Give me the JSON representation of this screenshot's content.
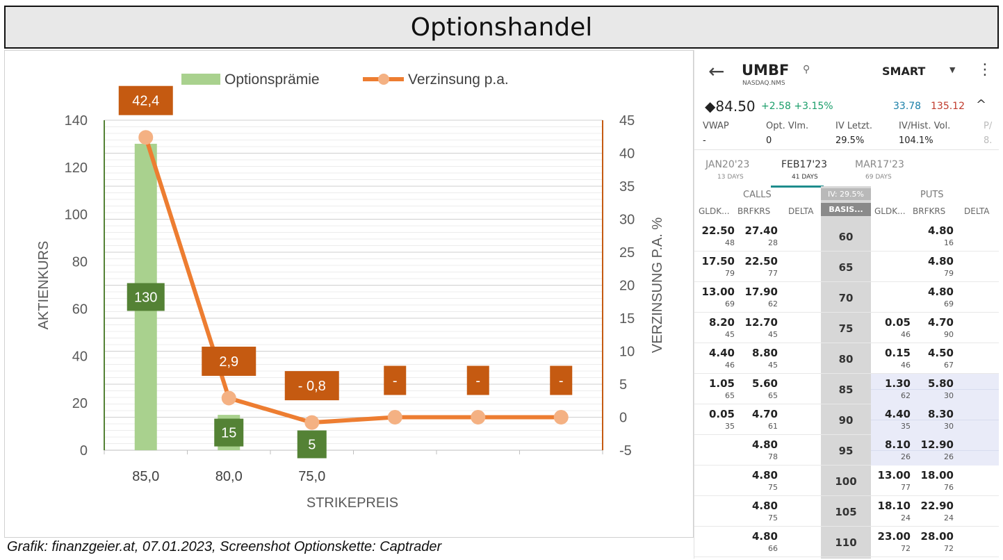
{
  "title": "Optionshandel",
  "caption": "Grafik: finanzgeier.at, 07.01.2023, Screenshot Optionskette: Captrader",
  "colors": {
    "bar": "#a9d18e",
    "bar_label_bg": "#548235",
    "line": "#ed7d31",
    "marker": "#f4b183",
    "line_label_bg": "#c55a11",
    "left_axis": "#548235",
    "right_axis": "#c55a11",
    "grid": "#d9d9d9"
  },
  "chart_data": {
    "type": "bar",
    "categories": [
      "85,0",
      "80,0",
      "75,0",
      "",
      "",
      ""
    ],
    "xlabel": "STRIKEPREIS",
    "ylabel": "AKTIENKURS",
    "y2label": "VERZINSUNG P.A. %",
    "ylim": [
      0,
      140
    ],
    "y2lim": [
      -5,
      45
    ],
    "yticks": [
      0,
      20,
      40,
      60,
      80,
      100,
      120,
      140
    ],
    "y2ticks": [
      -5,
      0,
      5,
      10,
      15,
      20,
      25,
      30,
      35,
      40,
      45
    ],
    "legend": "top",
    "grid": true,
    "series": [
      {
        "name": "Optionsprämie",
        "type": "bar",
        "axis": "left",
        "values": [
          130,
          15,
          5,
          null,
          null,
          null
        ],
        "labels": [
          "130",
          "15",
          "5",
          null,
          null,
          null
        ]
      },
      {
        "name": "Verzinsung p.a.",
        "type": "line",
        "axis": "right",
        "values": [
          42.4,
          2.9,
          -0.8,
          0,
          0,
          0
        ],
        "labels": [
          "42,4",
          "2,9",
          "- 0,8",
          "-",
          "-",
          "-"
        ]
      }
    ]
  },
  "phone": {
    "back_icon": "←",
    "symbol": "UMBF",
    "exchange": "NASDAQ.NMS",
    "search_icon": "⚲",
    "route": "SMART",
    "route_caret": "▼",
    "more_icon": "⋮",
    "price": "◆84.50",
    "change": "+2.58 +3.15%",
    "bid": "33.78",
    "ask": "135.12",
    "collapse_icon": "^",
    "stats": [
      {
        "label": "VWAP",
        "value": "-"
      },
      {
        "label": "Opt. Vlm.",
        "value": "0"
      },
      {
        "label": "IV Letzt.",
        "value": "29.5%"
      },
      {
        "label": "IV/Hist. Vol.",
        "value": "104.1%"
      },
      {
        "label": "P/",
        "value": "8."
      }
    ],
    "expirations": [
      {
        "label": "JAN20'23",
        "sub": "13 DAYS",
        "active": false
      },
      {
        "label": "FEB17'23",
        "sub": "41 DAYS",
        "active": true
      },
      {
        "label": "MAR17'23",
        "sub": "69 DAYS",
        "active": false
      }
    ],
    "calls_header": "CALLS",
    "puts_header": "PUTS",
    "iv_badge": "IV: 29.5%",
    "basis_header": "BASIS...",
    "call_columns": [
      "GLDK...",
      "BRFKRS",
      "DELTA"
    ],
    "put_columns": [
      "GLDK...",
      "BRFKRS",
      "DELTA"
    ],
    "rows": [
      {
        "strike": "60",
        "call_bid": "22.50",
        "call_bid_size": "48",
        "call_ask": "27.40",
        "call_ask_size": "28",
        "put_bid": "",
        "put_bid_size": "",
        "put_ask": "4.80",
        "put_ask_size": "16",
        "itm_put": false
      },
      {
        "strike": "65",
        "call_bid": "17.50",
        "call_bid_size": "79",
        "call_ask": "22.50",
        "call_ask_size": "77",
        "put_bid": "",
        "put_bid_size": "",
        "put_ask": "4.80",
        "put_ask_size": "79",
        "itm_put": false
      },
      {
        "strike": "70",
        "call_bid": "13.00",
        "call_bid_size": "69",
        "call_ask": "17.90",
        "call_ask_size": "62",
        "put_bid": "",
        "put_bid_size": "",
        "put_ask": "4.80",
        "put_ask_size": "69",
        "itm_put": false
      },
      {
        "strike": "75",
        "call_bid": "8.20",
        "call_bid_size": "45",
        "call_ask": "12.70",
        "call_ask_size": "45",
        "put_bid": "0.05",
        "put_bid_size": "46",
        "put_ask": "4.70",
        "put_ask_size": "90",
        "itm_put": false
      },
      {
        "strike": "80",
        "call_bid": "4.40",
        "call_bid_size": "46",
        "call_ask": "8.80",
        "call_ask_size": "45",
        "put_bid": "0.15",
        "put_bid_size": "46",
        "put_ask": "4.50",
        "put_ask_size": "67",
        "itm_put": false
      },
      {
        "strike": "85",
        "call_bid": "1.05",
        "call_bid_size": "65",
        "call_ask": "5.60",
        "call_ask_size": "65",
        "put_bid": "1.30",
        "put_bid_size": "62",
        "put_ask": "5.80",
        "put_ask_size": "30",
        "itm_put": true
      },
      {
        "strike": "90",
        "call_bid": "0.05",
        "call_bid_size": "35",
        "call_ask": "4.70",
        "call_ask_size": "61",
        "put_bid": "4.40",
        "put_bid_size": "35",
        "put_ask": "8.30",
        "put_ask_size": "30",
        "itm_put": true
      },
      {
        "strike": "95",
        "call_bid": "",
        "call_bid_size": "",
        "call_ask": "4.80",
        "call_ask_size": "78",
        "put_bid": "8.10",
        "put_bid_size": "26",
        "put_ask": "12.90",
        "put_ask_size": "26",
        "itm_put": true
      },
      {
        "strike": "100",
        "call_bid": "",
        "call_bid_size": "",
        "call_ask": "4.80",
        "call_ask_size": "75",
        "put_bid": "13.00",
        "put_bid_size": "77",
        "put_ask": "18.00",
        "put_ask_size": "76",
        "itm_put": false
      },
      {
        "strike": "105",
        "call_bid": "",
        "call_bid_size": "",
        "call_ask": "4.80",
        "call_ask_size": "75",
        "put_bid": "18.10",
        "put_bid_size": "24",
        "put_ask": "22.90",
        "put_ask_size": "24",
        "itm_put": false
      },
      {
        "strike": "110",
        "call_bid": "",
        "call_bid_size": "",
        "call_ask": "4.80",
        "call_ask_size": "66",
        "put_bid": "23.00",
        "put_bid_size": "72",
        "put_ask": "28.00",
        "put_ask_size": "72",
        "itm_put": false
      }
    ]
  }
}
